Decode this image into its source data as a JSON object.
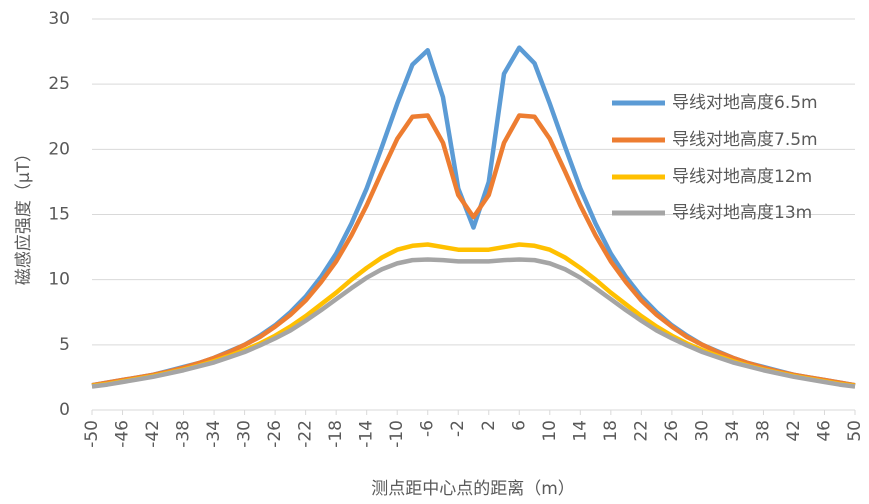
{
  "chart_data": {
    "type": "line",
    "x_label": "测点距中心点的距离（m）",
    "y_label": "磁感应强度（μT）",
    "x": [
      -50,
      -48,
      -46,
      -44,
      -42,
      -40,
      -38,
      -36,
      -34,
      -32,
      -30,
      -28,
      -26,
      -24,
      -22,
      -20,
      -18,
      -16,
      -14,
      -12,
      -10,
      -8,
      -6,
      -4,
      -2,
      0,
      2,
      4,
      6,
      8,
      10,
      12,
      14,
      16,
      18,
      20,
      22,
      24,
      26,
      28,
      30,
      32,
      34,
      36,
      38,
      40,
      42,
      44,
      46,
      48,
      50
    ],
    "series": [
      {
        "name": "导线对地高度6.5m",
        "color": "#5b9bd5",
        "values": [
          1.9,
          2.1,
          2.3,
          2.5,
          2.7,
          3.0,
          3.3,
          3.6,
          4.0,
          4.5,
          5.0,
          5.7,
          6.5,
          7.5,
          8.7,
          10.2,
          12.0,
          14.3,
          17.0,
          20.2,
          23.5,
          26.5,
          27.6,
          24.0,
          17.0,
          14.0,
          17.5,
          25.8,
          27.8,
          26.6,
          23.5,
          20.2,
          17.0,
          14.3,
          12.0,
          10.2,
          8.7,
          7.5,
          6.5,
          5.7,
          5.0,
          4.5,
          4.0,
          3.6,
          3.3,
          3.0,
          2.7,
          2.5,
          2.3,
          2.1,
          1.9
        ]
      },
      {
        "name": "导线对地高度7.5m",
        "color": "#ed7d31",
        "values": [
          1.9,
          2.1,
          2.3,
          2.5,
          2.7,
          2.95,
          3.25,
          3.6,
          4.0,
          4.45,
          5.0,
          5.6,
          6.4,
          7.3,
          8.4,
          9.8,
          11.4,
          13.4,
          15.7,
          18.3,
          20.8,
          22.5,
          22.6,
          20.5,
          16.5,
          14.8,
          16.5,
          20.5,
          22.6,
          22.5,
          20.8,
          18.3,
          15.7,
          13.4,
          11.4,
          9.8,
          8.4,
          7.3,
          6.4,
          5.6,
          5.0,
          4.45,
          4.0,
          3.6,
          3.25,
          2.95,
          2.7,
          2.5,
          2.3,
          2.1,
          1.9
        ]
      },
      {
        "name": "导线对地高度12m",
        "color": "#ffc000",
        "values": [
          1.85,
          2.0,
          2.2,
          2.4,
          2.6,
          2.85,
          3.1,
          3.4,
          3.75,
          4.15,
          4.6,
          5.1,
          5.7,
          6.4,
          7.2,
          8.1,
          9.0,
          10.0,
          10.9,
          11.7,
          12.3,
          12.6,
          12.7,
          12.5,
          12.3,
          12.3,
          12.3,
          12.5,
          12.7,
          12.6,
          12.3,
          11.7,
          10.9,
          10.0,
          9.0,
          8.1,
          7.2,
          6.4,
          5.7,
          5.1,
          4.6,
          4.15,
          3.75,
          3.4,
          3.1,
          2.85,
          2.6,
          2.4,
          2.2,
          2.0,
          1.85
        ]
      },
      {
        "name": "导线对地高度13m",
        "color": "#a5a5a5",
        "values": [
          1.8,
          1.95,
          2.15,
          2.35,
          2.55,
          2.8,
          3.05,
          3.35,
          3.65,
          4.05,
          4.45,
          4.95,
          5.5,
          6.1,
          6.85,
          7.65,
          8.5,
          9.35,
          10.15,
          10.8,
          11.25,
          11.5,
          11.55,
          11.5,
          11.4,
          11.4,
          11.4,
          11.5,
          11.55,
          11.5,
          11.25,
          10.8,
          10.15,
          9.35,
          8.5,
          7.65,
          6.85,
          6.1,
          5.5,
          4.95,
          4.45,
          4.05,
          3.65,
          3.35,
          3.05,
          2.8,
          2.55,
          2.35,
          2.15,
          1.95,
          1.8
        ]
      }
    ],
    "xlim": [
      -50,
      50
    ],
    "xticks": [
      -50,
      -46,
      -42,
      -38,
      -34,
      -30,
      -26,
      -22,
      -18,
      -14,
      -10,
      -6,
      -2,
      2,
      6,
      10,
      14,
      18,
      22,
      26,
      30,
      34,
      38,
      42,
      46,
      50
    ],
    "ylim": [
      0,
      30
    ],
    "yticks": [
      0,
      5,
      10,
      15,
      20,
      25,
      30
    ],
    "grid": true,
    "legend": "right"
  }
}
